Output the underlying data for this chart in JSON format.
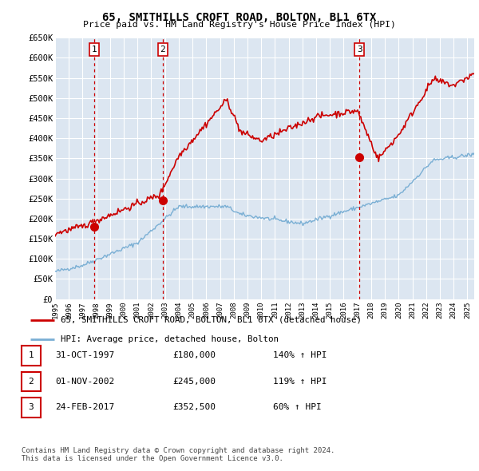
{
  "title": "65, SMITHILLS CROFT ROAD, BOLTON, BL1 6TX",
  "subtitle": "Price paid vs. HM Land Registry's House Price Index (HPI)",
  "background_color": "#ffffff",
  "plot_bg_color": "#dce6f1",
  "grid_color": "#ffffff",
  "ylim": [
    0,
    650000
  ],
  "yticks": [
    0,
    50000,
    100000,
    150000,
    200000,
    250000,
    300000,
    350000,
    400000,
    450000,
    500000,
    550000,
    600000,
    650000
  ],
  "ytick_labels": [
    "£0",
    "£50K",
    "£100K",
    "£150K",
    "£200K",
    "£250K",
    "£300K",
    "£350K",
    "£400K",
    "£450K",
    "£500K",
    "£550K",
    "£600K",
    "£650K"
  ],
  "xlim_start": 1995.0,
  "xlim_end": 2025.5,
  "xtick_years": [
    1995,
    1996,
    1997,
    1998,
    1999,
    2000,
    2001,
    2002,
    2003,
    2004,
    2005,
    2006,
    2007,
    2008,
    2009,
    2010,
    2011,
    2012,
    2013,
    2014,
    2015,
    2016,
    2017,
    2018,
    2019,
    2020,
    2021,
    2022,
    2023,
    2024,
    2025
  ],
  "sale_dates": [
    1997.833,
    2002.836,
    2017.146
  ],
  "sale_prices": [
    180000,
    245000,
    352500
  ],
  "sale_labels": [
    "1",
    "2",
    "3"
  ],
  "red_line_color": "#cc0000",
  "blue_line_color": "#7aafd4",
  "sale_marker_color": "#cc0000",
  "vline_color": "#cc0000",
  "legend_line1": "65, SMITHILLS CROFT ROAD, BOLTON, BL1 6TX (detached house)",
  "legend_line2": "HPI: Average price, detached house, Bolton",
  "table_entries": [
    {
      "label": "1",
      "date": "31-OCT-1997",
      "price": "£180,000",
      "hpi": "140% ↑ HPI"
    },
    {
      "label": "2",
      "date": "01-NOV-2002",
      "price": "£245,000",
      "hpi": "119% ↑ HPI"
    },
    {
      "label": "3",
      "date": "24-FEB-2017",
      "price": "£352,500",
      "hpi": "60% ↑ HPI"
    }
  ],
  "footnote": "Contains HM Land Registry data © Crown copyright and database right 2024.\nThis data is licensed under the Open Government Licence v3.0."
}
